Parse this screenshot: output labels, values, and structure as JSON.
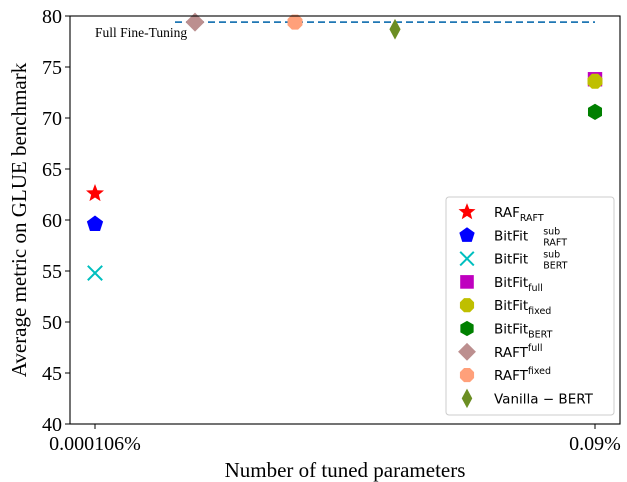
{
  "chart_data": {
    "type": "scatter",
    "xlabel": "Number of tuned parameters",
    "ylabel": "Average metric on GLUE benchmark",
    "ylim": [
      40,
      80
    ],
    "yticks": [
      40,
      45,
      50,
      55,
      60,
      65,
      70,
      75,
      80
    ],
    "xticks": [
      "0.000106%",
      "0.09%"
    ],
    "xlim": [
      -0.05,
      1.05
    ],
    "grid": false,
    "legend_position": "lower-right",
    "reference_line": {
      "label": "Full Fine-Tuning",
      "y": 79.4,
      "x_range": [
        0.16,
        1.0
      ],
      "color": "#1f77b4",
      "style": "dashed"
    },
    "series": [
      {
        "name": "RAF",
        "sub": "RAFT",
        "sup": "",
        "marker": "star",
        "color": "#ff0000",
        "points": [
          [
            0.0,
            62.6
          ]
        ]
      },
      {
        "name": "BitFit",
        "sub": "RAFT",
        "sup": "sub",
        "marker": "pentagon",
        "color": "#0000ff",
        "points": [
          [
            0.0,
            59.6
          ]
        ]
      },
      {
        "name": "BitFit",
        "sub": "BERT",
        "sup": "sub",
        "marker": "x",
        "color": "#00bfbf",
        "points": [
          [
            0.0,
            54.8
          ]
        ]
      },
      {
        "name": "BitFit",
        "sub": "full",
        "sup": "",
        "marker": "square",
        "color": "#bf00bf",
        "points": [
          [
            1.0,
            73.8
          ]
        ]
      },
      {
        "name": "BitFit",
        "sub": "fixed",
        "sup": "",
        "marker": "octagon",
        "color": "#bfbf00",
        "points": [
          [
            1.0,
            73.6
          ]
        ]
      },
      {
        "name": "BitFit",
        "sub": "BERT",
        "sup": "",
        "marker": "hexagon",
        "color": "#008000",
        "points": [
          [
            1.0,
            70.6
          ]
        ]
      },
      {
        "name": "RAFT",
        "sub": "",
        "sup": "full",
        "marker": "diamond",
        "color": "#bc8f8f",
        "points": [
          [
            0.2,
            79.4
          ]
        ]
      },
      {
        "name": "RAFT",
        "sub": "",
        "sup": "fixed",
        "marker": "octagon",
        "color": "#ffa07a",
        "points": [
          [
            0.4,
            79.4
          ]
        ]
      },
      {
        "name": "Vanilla − BERT",
        "sub": "",
        "sup": "",
        "marker": "thin-diamond",
        "color": "#6b8e23",
        "points": [
          [
            0.6,
            78.7
          ]
        ]
      }
    ]
  }
}
